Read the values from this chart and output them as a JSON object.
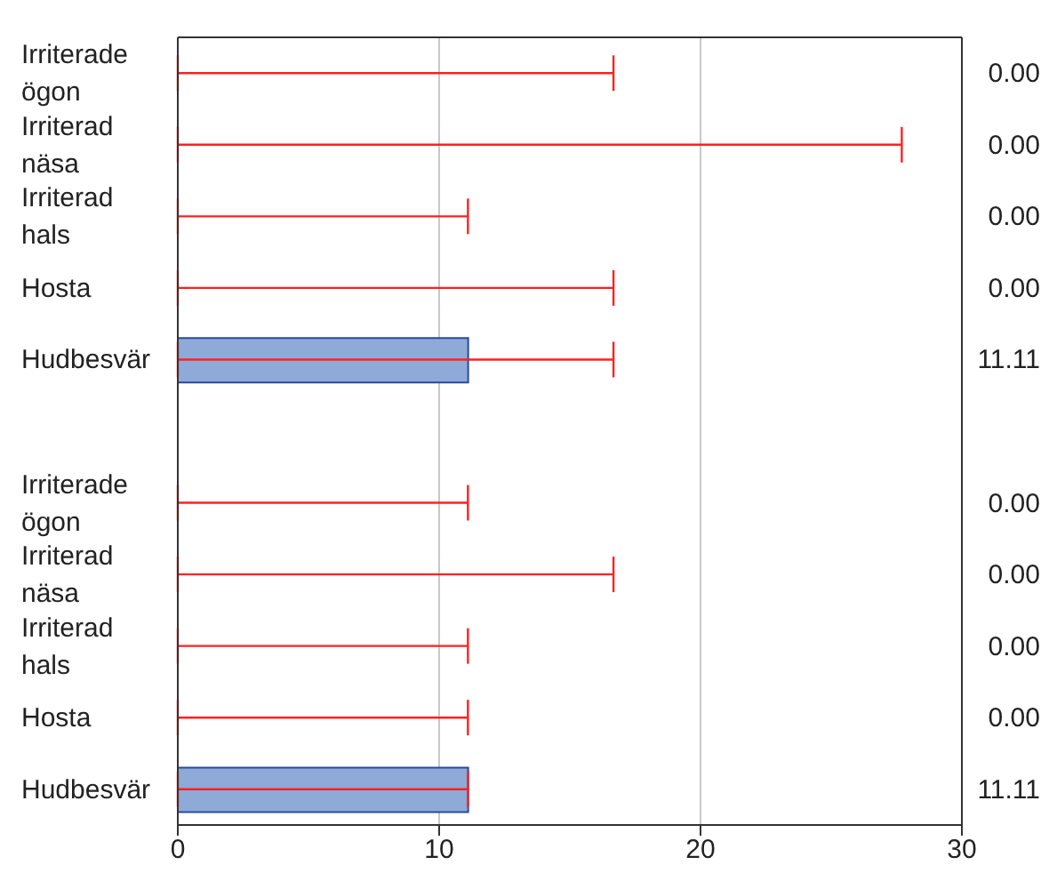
{
  "chart_data": {
    "type": "bar",
    "orientation": "horizontal",
    "categories": [
      "Irriterade ögon",
      "Irriterad näsa",
      "Irriterad hals",
      "Hosta",
      "Hudbesvär",
      null,
      "Irriterade ögon",
      "Irriterad näsa",
      "Irriterad hals",
      "Hosta",
      "Hudbesvär"
    ],
    "values": [
      0,
      0,
      0,
      0,
      11.11,
      null,
      0,
      0,
      0,
      0,
      11.11
    ],
    "value_labels": [
      "0.00",
      "0.00",
      "0.00",
      "0.00",
      "11.11",
      null,
      "0.00",
      "0.00",
      "0.00",
      "0.00",
      "11.11"
    ],
    "errors": [
      [
        0,
        16.67
      ],
      [
        0,
        27.7
      ],
      [
        0,
        11.1
      ],
      [
        0,
        16.67
      ],
      [
        0,
        16.67
      ],
      null,
      [
        0,
        11.1
      ],
      [
        0,
        16.67
      ],
      [
        0,
        11.1
      ],
      [
        0,
        11.1
      ],
      [
        0,
        11.1
      ]
    ],
    "color": "#8eaad8",
    "xlim": [
      0,
      30
    ],
    "xticks": [
      0,
      10,
      20,
      30
    ],
    "grid": "x"
  }
}
